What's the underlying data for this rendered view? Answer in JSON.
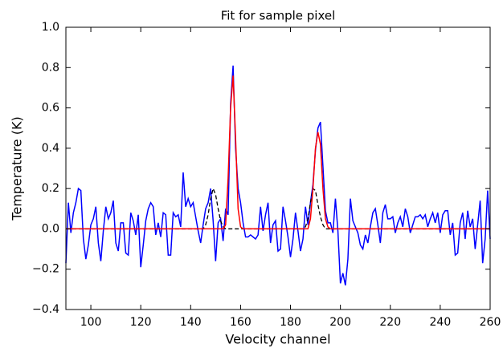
{
  "chart_data": {
    "type": "line",
    "title": "Fit for sample pixel",
    "x_label": "Velocity channel",
    "y_label": "Temperature (K)",
    "xlim": [
      90,
      260
    ],
    "ylim": [
      -0.4,
      1.0
    ],
    "xticks": [
      100,
      120,
      140,
      160,
      180,
      200,
      220,
      240,
      260
    ],
    "yticks": [
      {
        "value": -0.4,
        "label": "−0.4"
      },
      {
        "value": -0.2,
        "label": "−0.2"
      },
      {
        "value": 0,
        "label": "0.0"
      },
      {
        "value": 0.2,
        "label": "0.2"
      },
      {
        "value": 0.4,
        "label": "0.4"
      },
      {
        "value": 0.6,
        "label": "0.6"
      },
      {
        "value": 0.8,
        "label": "0.8"
      },
      {
        "value": 1.0,
        "label": "1.0"
      }
    ],
    "grid": false,
    "x": [
      90,
      91,
      92,
      93,
      94,
      95,
      96,
      97,
      98,
      99,
      100,
      101,
      102,
      103,
      104,
      105,
      106,
      107,
      108,
      109,
      110,
      111,
      112,
      113,
      114,
      115,
      116,
      117,
      118,
      119,
      120,
      121,
      122,
      123,
      124,
      125,
      126,
      127,
      128,
      129,
      130,
      131,
      132,
      133,
      134,
      135,
      136,
      137,
      138,
      139,
      140,
      141,
      142,
      143,
      144,
      145,
      146,
      147,
      148,
      149,
      150,
      151,
      152,
      153,
      154,
      155,
      156,
      157,
      158,
      159,
      160,
      161,
      162,
      163,
      164,
      165,
      166,
      167,
      168,
      169,
      170,
      171,
      172,
      173,
      174,
      175,
      176,
      177,
      178,
      179,
      180,
      181,
      182,
      183,
      184,
      185,
      186,
      187,
      188,
      189,
      190,
      191,
      192,
      193,
      194,
      195,
      196,
      197,
      198,
      199,
      200,
      201,
      202,
      203,
      204,
      205,
      206,
      207,
      208,
      209,
      210,
      211,
      212,
      213,
      214,
      215,
      216,
      217,
      218,
      219,
      220,
      221,
      222,
      223,
      224,
      225,
      226,
      227,
      228,
      229,
      230,
      231,
      232,
      233,
      234,
      235,
      236,
      237,
      238,
      239,
      240,
      241,
      242,
      243,
      244,
      245,
      246,
      247,
      248,
      249,
      250,
      251,
      252,
      253,
      254,
      255,
      256,
      257,
      258,
      259,
      260
    ],
    "series": [
      {
        "color": "#0000ff",
        "dash": false,
        "values": [
          -0.17,
          0.13,
          -0.02,
          0.08,
          0.13,
          0.2,
          0.19,
          -0.05,
          -0.15,
          -0.08,
          0.02,
          0.05,
          0.11,
          -0.07,
          -0.16,
          -0.01,
          0.11,
          0.05,
          0.08,
          0.14,
          -0.07,
          -0.11,
          0.03,
          0.03,
          -0.12,
          -0.13,
          0.08,
          0.04,
          -0.03,
          0.07,
          -0.19,
          -0.08,
          0.04,
          0.1,
          0.13,
          0.11,
          -0.03,
          0.03,
          -0.04,
          0.08,
          0.07,
          -0.13,
          -0.13,
          0.08,
          0.06,
          0.07,
          0.01,
          0.28,
          0.11,
          0.15,
          0.11,
          0.13,
          0.06,
          -0.01,
          -0.07,
          0.02,
          0.1,
          0.13,
          0.2,
          0.04,
          -0.16,
          0.03,
          0.05,
          -0.06,
          0.1,
          0.07,
          0.62,
          0.81,
          0.4,
          0.2,
          0.13,
          0.03,
          -0.04,
          -0.04,
          -0.03,
          -0.04,
          -0.05,
          -0.03,
          0.11,
          -0.01,
          0.07,
          0.13,
          -0.07,
          0.02,
          0.04,
          -0.11,
          -0.1,
          0.11,
          0.04,
          -0.04,
          -0.14,
          -0.05,
          0.08,
          -0.01,
          -0.11,
          -0.05,
          0.11,
          0.02,
          0.13,
          0.22,
          0.39,
          0.5,
          0.53,
          0.31,
          0.09,
          0.03,
          0.03,
          -0.02,
          0.15,
          -0.01,
          -0.27,
          -0.22,
          -0.28,
          -0.15,
          0.15,
          0.04,
          0.01,
          -0.02,
          -0.08,
          -0.1,
          -0.03,
          -0.07,
          0.01,
          0.08,
          0.1,
          0.02,
          -0.07,
          0.08,
          0.12,
          0.05,
          0.05,
          0.06,
          -0.02,
          0.03,
          0.06,
          0.01,
          0.1,
          0.06,
          -0.02,
          0.02,
          0.06,
          0.06,
          0.07,
          0.05,
          0.07,
          0.01,
          0.05,
          0.08,
          0.03,
          0.08,
          -0.02,
          0.07,
          0.09,
          0.09,
          -0.03,
          0.03,
          -0.13,
          -0.12,
          0.03,
          0.08,
          -0.05,
          0.09,
          0.01,
          0.05,
          -0.1,
          0.02,
          0.14,
          -0.17,
          -0.05,
          0.19,
          -0.05
        ]
      },
      {
        "color": "#000000",
        "dash": true,
        "values": [
          0,
          0,
          0,
          0,
          0,
          0,
          0,
          0,
          0,
          0,
          0,
          0,
          0,
          0,
          0,
          0,
          0,
          0,
          0,
          0,
          0,
          0,
          0,
          0,
          0,
          0,
          0,
          0,
          0,
          0,
          0,
          0,
          0,
          0,
          0,
          0,
          0,
          0,
          0,
          0,
          0,
          0,
          0,
          0,
          0,
          0,
          0,
          0,
          0,
          0,
          0,
          0,
          0,
          0,
          0,
          0,
          0.02,
          0.07,
          0.15,
          0.2,
          0.17,
          0.1,
          0.04,
          0.01,
          0,
          0,
          0,
          0,
          0,
          0,
          0,
          0,
          0,
          0,
          0,
          0,
          0,
          0,
          0,
          0,
          0,
          0,
          0,
          0,
          0,
          0,
          0,
          0,
          0,
          0,
          0,
          0,
          0,
          0,
          0,
          0,
          0.01,
          0.05,
          0.13,
          0.2,
          0.19,
          0.12,
          0.06,
          0.02,
          0,
          0,
          0,
          0,
          0,
          0,
          0,
          0,
          0,
          0,
          0,
          0,
          0,
          0,
          0,
          0,
          0,
          0,
          0,
          0,
          0,
          0,
          0,
          0,
          0,
          0,
          0,
          0,
          0,
          0,
          0,
          0,
          0,
          0,
          0,
          0,
          0,
          0,
          0,
          0,
          0,
          0,
          0,
          0,
          0,
          0,
          0,
          0,
          0,
          0,
          0,
          0,
          0,
          0,
          0,
          0,
          0,
          0,
          0,
          0,
          0,
          0,
          0,
          0,
          0,
          0,
          0
        ]
      },
      {
        "color": "#ff0000",
        "dash": false,
        "values": [
          0,
          0,
          0,
          0,
          0,
          0,
          0,
          0,
          0,
          0,
          0,
          0,
          0,
          0,
          0,
          0,
          0,
          0,
          0,
          0,
          0,
          0,
          0,
          0,
          0,
          0,
          0,
          0,
          0,
          0,
          0,
          0,
          0,
          0,
          0,
          0,
          0,
          0,
          0,
          0,
          0,
          0,
          0,
          0,
          0,
          0,
          0,
          0,
          0,
          0,
          0,
          0,
          0,
          0,
          0,
          0,
          0,
          0,
          0,
          0,
          0,
          0,
          0,
          0,
          0.02,
          0.25,
          0.6,
          0.76,
          0.45,
          0.1,
          0.01,
          0,
          0,
          0,
          0,
          0,
          0,
          0,
          0,
          0,
          0,
          0,
          0,
          0,
          0,
          0,
          0,
          0,
          0,
          0,
          0,
          0,
          0,
          0,
          0,
          0,
          0,
          0,
          0.05,
          0.2,
          0.4,
          0.48,
          0.42,
          0.2,
          0.05,
          0.01,
          0,
          0,
          0,
          0,
          0,
          0,
          0,
          0,
          0,
          0,
          0,
          0,
          0,
          0,
          0,
          0,
          0,
          0,
          0,
          0,
          0,
          0,
          0,
          0,
          0,
          0,
          0,
          0,
          0,
          0,
          0,
          0,
          0,
          0,
          0,
          0,
          0,
          0,
          0,
          0,
          0,
          0,
          0,
          0,
          0,
          0,
          0,
          0,
          0,
          0,
          0,
          0,
          0,
          0,
          0,
          0,
          0,
          0,
          0,
          0,
          0,
          0,
          0,
          0,
          0
        ]
      }
    ]
  }
}
